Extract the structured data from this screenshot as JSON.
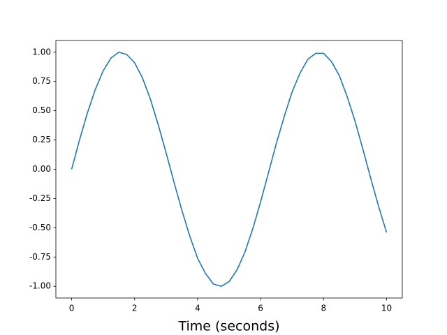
{
  "chart_data": {
    "type": "line",
    "xlabel": "Time (seconds)",
    "x": [
      0,
      0.25,
      0.5,
      0.75,
      1,
      1.25,
      1.5,
      1.75,
      2,
      2.25,
      2.5,
      2.75,
      3,
      3.25,
      3.5,
      3.75,
      4,
      4.25,
      4.5,
      4.75,
      5,
      5.25,
      5.5,
      5.75,
      6,
      6.25,
      6.5,
      6.75,
      7,
      7.25,
      7.5,
      7.75,
      8,
      8.25,
      8.5,
      8.75,
      9,
      9.25,
      9.5,
      9.75,
      10
    ],
    "values": [
      0,
      0.25,
      0.48,
      0.68,
      0.84,
      0.95,
      1.0,
      0.98,
      0.91,
      0.78,
      0.6,
      0.38,
      0.14,
      -0.11,
      -0.35,
      -0.57,
      -0.76,
      -0.89,
      -0.98,
      -1.0,
      -0.96,
      -0.86,
      -0.71,
      -0.51,
      -0.28,
      -0.03,
      0.22,
      0.45,
      0.66,
      0.82,
      0.94,
      0.99,
      0.99,
      0.92,
      0.8,
      0.62,
      0.41,
      0.17,
      -0.08,
      -0.32,
      -0.54
    ],
    "color": "#1f77b4",
    "xlim": [
      -0.5,
      10.5
    ],
    "ylim": [
      -1.1,
      1.1
    ],
    "xticks": [
      0,
      2,
      4,
      6,
      8,
      10
    ],
    "yticks": [
      {
        "value": 1,
        "label": "1.00"
      },
      {
        "value": 0.75,
        "label": "0.75"
      },
      {
        "value": 0.5,
        "label": "0.50"
      },
      {
        "value": 0.25,
        "label": "0.25"
      },
      {
        "value": 0,
        "label": "0.00"
      },
      {
        "value": -0.25,
        "label": "-0.25"
      },
      {
        "value": -0.5,
        "label": "-0.50"
      },
      {
        "value": -0.75,
        "label": "-0.75"
      },
      {
        "value": -1,
        "label": "-1.00"
      }
    ],
    "grid": false
  }
}
